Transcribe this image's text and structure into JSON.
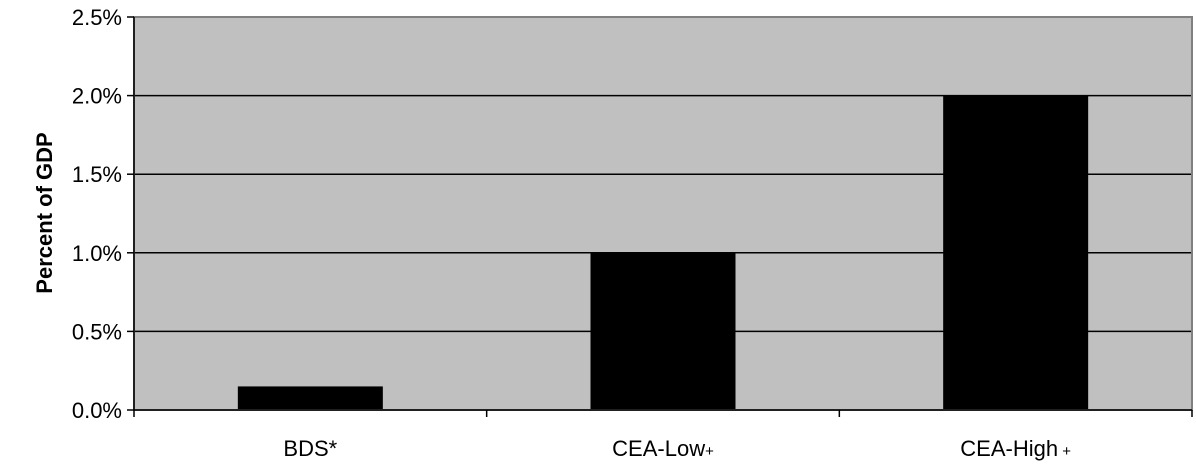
{
  "chart_data": {
    "type": "bar",
    "categories": [
      "BDS*",
      "CEA-Low+",
      "CEA-High+"
    ],
    "category_labels": [
      {
        "main": "BDS*",
        "suffix": ""
      },
      {
        "main": "CEA-Low",
        "suffix": "+"
      },
      {
        "main": "CEA-High",
        "suffix": " +"
      }
    ],
    "values": [
      0.0015,
      0.01,
      0.02
    ],
    "ylabel": "Percent of GDP",
    "ylim": [
      0,
      0.025
    ],
    "yticks": [
      0,
      0.005,
      0.01,
      0.015,
      0.02,
      0.025
    ],
    "ytick_labels": [
      "0.0%",
      "0.5%",
      "1.0%",
      "1.5%",
      "2.0%",
      "2.5%"
    ],
    "grid": true,
    "legend": "none",
    "colors": {
      "plot_background": "#c0c0c0",
      "bar": "#000000",
      "gridline": "#000000",
      "plot_border": "#808080"
    }
  }
}
